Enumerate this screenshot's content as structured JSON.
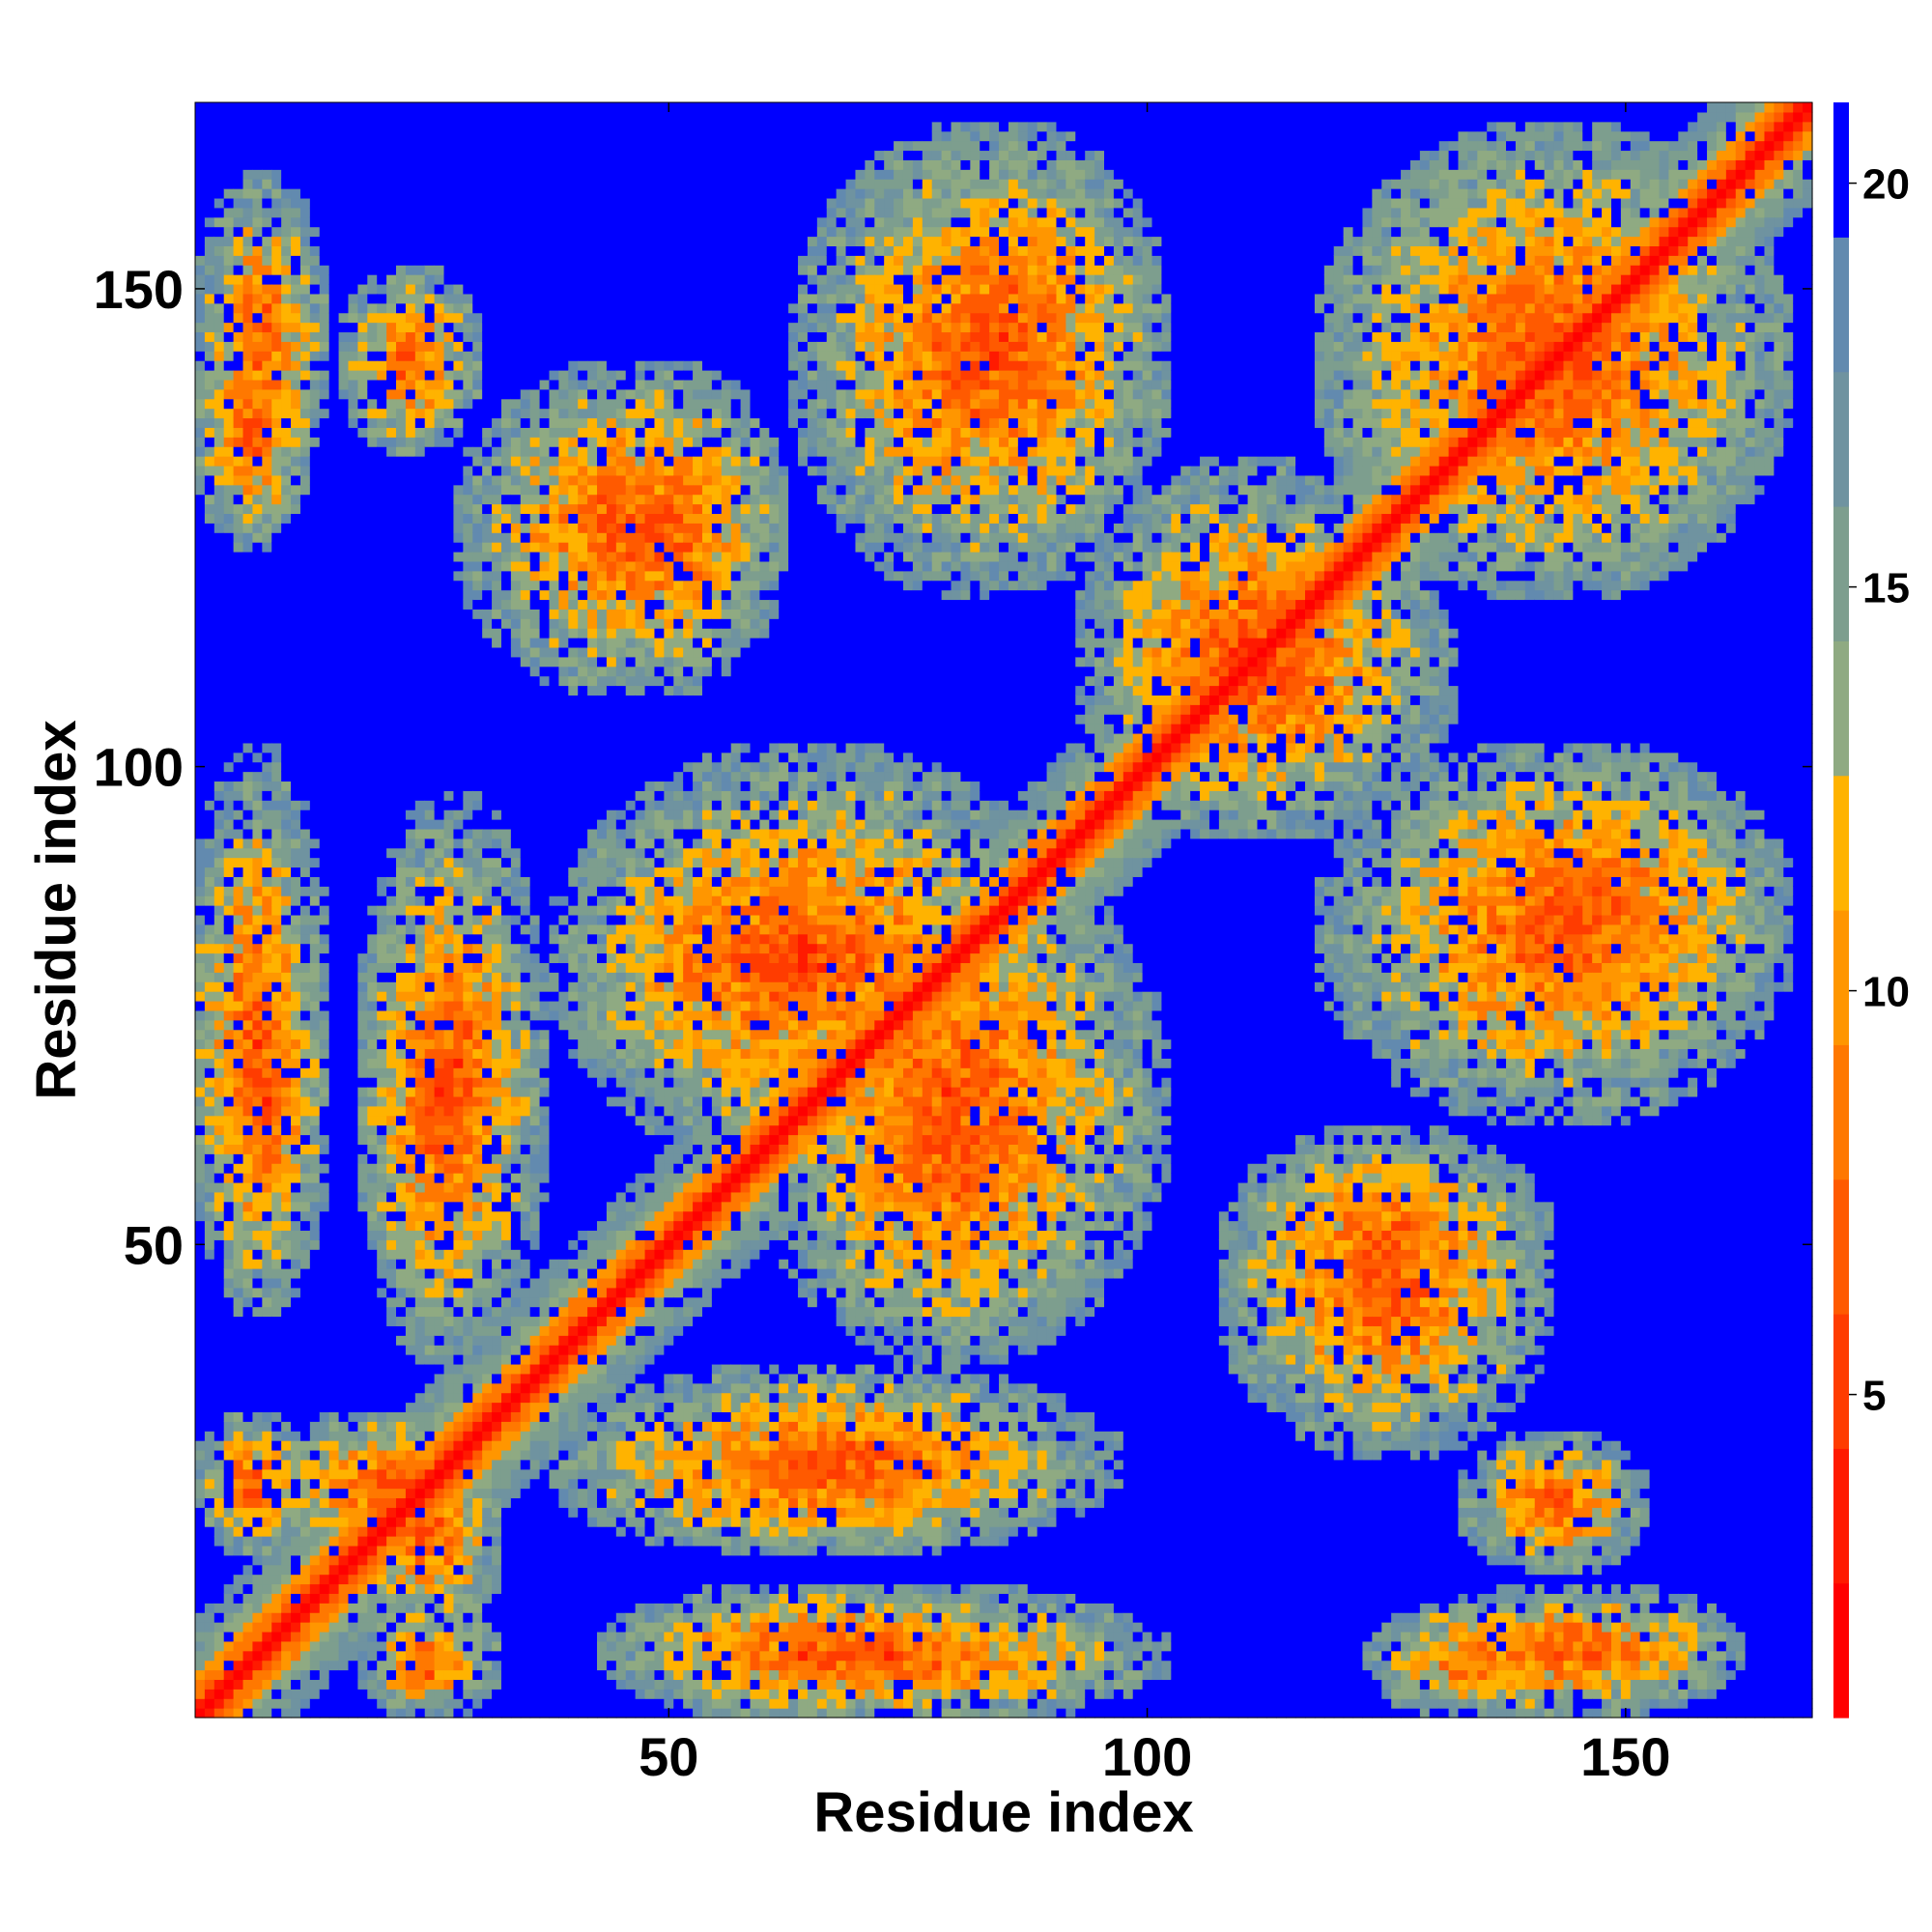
{
  "chart_data": {
    "type": "heatmap",
    "title": "",
    "xlabel": "Residue index",
    "ylabel": "Residue index",
    "xlim": [
      1,
      169
    ],
    "ylim": [
      1,
      169
    ],
    "x_ticks": [
      50,
      100,
      150
    ],
    "y_ticks": [
      50,
      100,
      150
    ],
    "colorbar": {
      "range": [
        1,
        21
      ],
      "ticks": [
        5,
        10,
        15,
        20
      ],
      "colors": [
        "#ff0000",
        "#ff1a00",
        "#ff3c00",
        "#ff5a00",
        "#ff7800",
        "#ff9600",
        "#ffb300",
        "#8faa82",
        "#7d9e8e",
        "#6f93a0",
        "#628aaf",
        "#0000ff"
      ]
    },
    "series": [
      {
        "kind": "diagonal",
        "from": 1,
        "to": 169
      },
      {
        "kind": "contact-cluster",
        "x": [
          10,
          30
        ],
        "y": [
          20,
          30
        ]
      },
      {
        "kind": "contact-cluster",
        "x": [
          20,
          30
        ],
        "y": [
          3,
          10
        ]
      },
      {
        "kind": "contact-cluster",
        "x": [
          3,
          12
        ],
        "y": [
          45,
          85
        ]
      },
      {
        "kind": "contact-cluster",
        "x": [
          20,
          32
        ],
        "y": [
          40,
          90
        ]
      },
      {
        "kind": "contact-cluster",
        "x": [
          40,
          95
        ],
        "y": [
          20,
          35
        ]
      },
      {
        "kind": "contact-cluster",
        "x": [
          45,
          100
        ],
        "y": [
          2,
          12
        ]
      },
      {
        "kind": "contact-cluster",
        "x": [
          40,
          90
        ],
        "y": [
          60,
          100
        ]
      },
      {
        "kind": "contact-cluster",
        "x": [
          65,
          95
        ],
        "y": [
          40,
          80
        ]
      },
      {
        "kind": "contact-cluster",
        "x": [
          40,
          60
        ],
        "y": [
          110,
          140
        ]
      },
      {
        "kind": "contact-cluster",
        "x": [
          65,
          100
        ],
        "y": [
          120,
          165
        ]
      },
      {
        "kind": "contact-cluster",
        "x": [
          95,
          125
        ],
        "y": [
          95,
          130
        ]
      },
      {
        "kind": "contact-cluster",
        "x": [
          120,
          165
        ],
        "y": [
          120,
          165
        ]
      },
      {
        "kind": "contact-cluster",
        "x": [
          125,
          165
        ],
        "y": [
          70,
          100
        ]
      },
      {
        "kind": "contact-cluster",
        "x": [
          110,
          140
        ],
        "y": [
          30,
          60
        ]
      },
      {
        "kind": "contact-cluster",
        "x": [
          125,
          145
        ],
        "y": [
          3,
          10
        ]
      },
      {
        "kind": "contact-cluster",
        "x": [
          3,
          12
        ],
        "y": [
          130,
          160
        ]
      },
      {
        "kind": "contact-cluster",
        "x": [
          18,
          28
        ],
        "y": [
          135,
          150
        ]
      }
    ]
  }
}
